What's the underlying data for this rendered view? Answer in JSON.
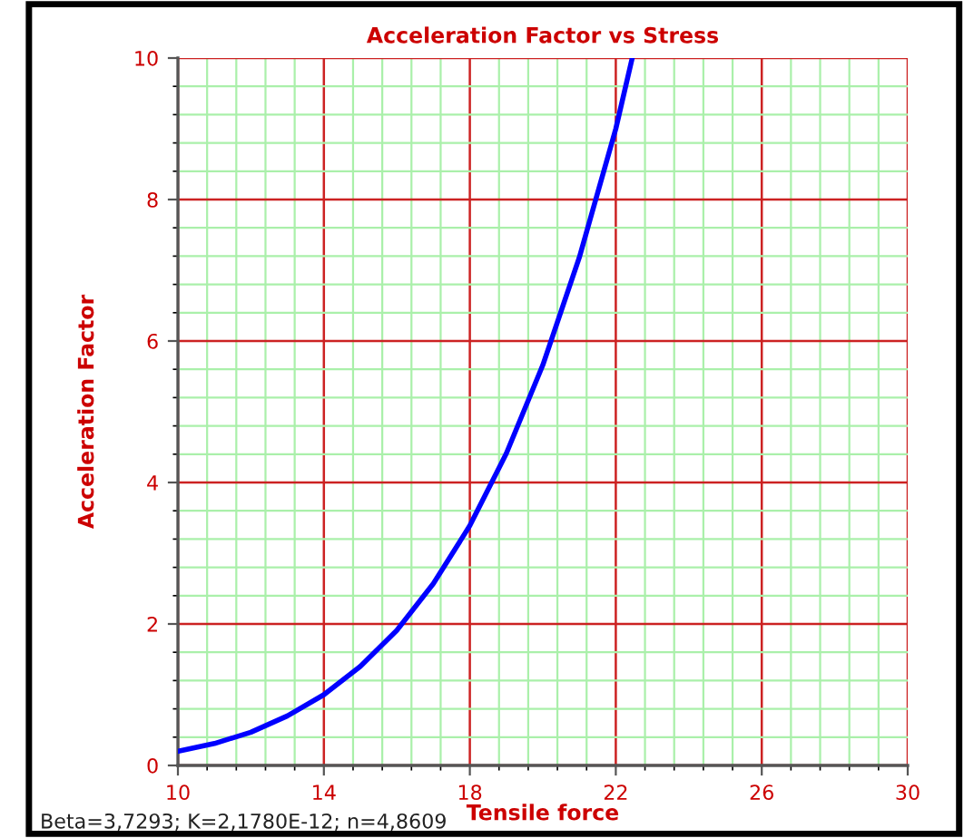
{
  "chart_data": {
    "type": "line",
    "title": "Acceleration Factor vs Stress",
    "xlabel": "Tensile force",
    "ylabel": "Acceleration Factor",
    "x": [
      10,
      11,
      12,
      13,
      14,
      15,
      16,
      17,
      18,
      19,
      20,
      21,
      22,
      22.45
    ],
    "series": [
      {
        "color": "#0000ff",
        "values": [
          0.2,
          0.31,
          0.47,
          0.7,
          1.0,
          1.4,
          1.91,
          2.57,
          3.39,
          4.41,
          5.66,
          7.18,
          9.0,
          10.0
        ]
      }
    ],
    "xlim": [
      10,
      30
    ],
    "ylim": [
      0,
      10
    ],
    "xticks": [
      10,
      {
        "value": 10.8,
        "label": null
      },
      {
        "value": 11.6,
        "label": null
      },
      {
        "value": 12.4,
        "label": null
      },
      {
        "value": 13.2,
        "label": null
      },
      14,
      {
        "value": 14.8,
        "label": null
      },
      {
        "value": 15.6,
        "label": null
      },
      {
        "value": 16.4,
        "label": null
      },
      {
        "value": 17.2,
        "label": null
      },
      18,
      {
        "value": 18.8,
        "label": null
      },
      {
        "value": 19.6,
        "label": null
      },
      {
        "value": 20.4,
        "label": null
      },
      {
        "value": 21.2,
        "label": null
      },
      22,
      {
        "value": 22.8,
        "label": null
      },
      {
        "value": 23.6,
        "label": null
      },
      {
        "value": 24.4,
        "label": null
      },
      {
        "value": 25.2,
        "label": null
      },
      26,
      {
        "value": 26.8,
        "label": null
      },
      {
        "value": 27.6,
        "label": null
      },
      {
        "value": 28.4,
        "label": null
      },
      {
        "value": 29.2,
        "label": null
      },
      30
    ],
    "yticks": [
      0,
      {
        "value": 0.4,
        "label": null
      },
      {
        "value": 0.8,
        "label": null
      },
      {
        "value": 1.2,
        "label": null
      },
      {
        "value": 1.6,
        "label": null
      },
      2,
      {
        "value": 2.4,
        "label": null
      },
      {
        "value": 2.8,
        "label": null
      },
      {
        "value": 3.2,
        "label": null
      },
      {
        "value": 3.6,
        "label": null
      },
      4,
      {
        "value": 4.4,
        "label": null
      },
      {
        "value": 4.8,
        "label": null
      },
      {
        "value": 5.2,
        "label": null
      },
      {
        "value": 5.6,
        "label": null
      },
      6,
      {
        "value": 6.4,
        "label": null
      },
      {
        "value": 6.8,
        "label": null
      },
      {
        "value": 7.2,
        "label": null
      },
      {
        "value": 7.6,
        "label": null
      },
      8,
      {
        "value": 8.4,
        "label": null
      },
      {
        "value": 8.8,
        "label": null
      },
      {
        "value": 9.2,
        "label": null
      },
      {
        "value": 9.6,
        "label": null
      },
      10
    ],
    "grid": true,
    "marker": "none",
    "line_style": "solid",
    "annotations": [
      "Beta=3,7293; K=2,1780E-12; n=4,8609"
    ]
  }
}
